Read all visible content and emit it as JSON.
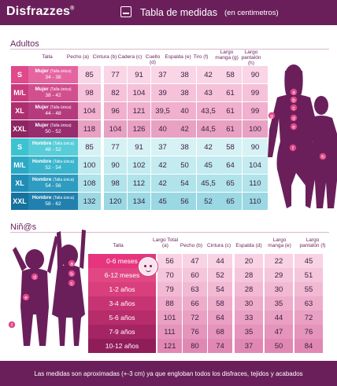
{
  "header": {
    "brand": "Disfrazzes",
    "title": "Tabla de medidas",
    "units": "(en centimetros)"
  },
  "adults": {
    "section_title": "Adultos",
    "headers": [
      "Talla",
      "Pecho (a)",
      "Cintura (b)",
      "Cadera (c)",
      "Cuello (d)",
      "Espalda (e)",
      "Tiro (f)",
      "Largo manga (g)",
      "Largo pantalón (h)"
    ],
    "rows": [
      {
        "size": "S",
        "group": "Mujer",
        "note": "(Talla única)",
        "range": "34 - 38",
        "values": [
          "85",
          "77",
          "91",
          "37",
          "38",
          "42",
          "58",
          "90"
        ]
      },
      {
        "size": "M/L",
        "group": "Mujer",
        "note": "(Talla única)",
        "range": "38 - 42",
        "values": [
          "98",
          "82",
          "104",
          "39",
          "38",
          "43",
          "61",
          "99"
        ]
      },
      {
        "size": "XL",
        "group": "Mujer",
        "note": "(Talla única)",
        "range": "44 - 48",
        "values": [
          "104",
          "96",
          "121",
          "39,5",
          "40",
          "43,5",
          "61",
          "99"
        ]
      },
      {
        "size": "XXL",
        "group": "Mujer",
        "note": "(Talla única)",
        "range": "50 - 52",
        "values": [
          "118",
          "104",
          "126",
          "40",
          "42",
          "44,5",
          "61",
          "100"
        ]
      },
      {
        "size": "S",
        "group": "Hombre",
        "note": "(Talla única)",
        "range": "48 - 52",
        "values": [
          "85",
          "77",
          "91",
          "37",
          "38",
          "42",
          "58",
          "90"
        ]
      },
      {
        "size": "M/L",
        "group": "Hombre",
        "note": "(Talla única)",
        "range": "52 - 54",
        "values": [
          "100",
          "90",
          "102",
          "42",
          "50",
          "45",
          "64",
          "104"
        ]
      },
      {
        "size": "XL",
        "group": "Hombre",
        "note": "(Talla única)",
        "range": "54 - 56",
        "values": [
          "108",
          "98",
          "112",
          "42",
          "54",
          "45,5",
          "65",
          "110"
        ]
      },
      {
        "size": "XXL",
        "group": "Hombre",
        "note": "(Talla única)",
        "range": "58 - 62",
        "values": [
          "132",
          "120",
          "134",
          "45",
          "56",
          "52",
          "65",
          "110"
        ]
      }
    ],
    "figure_labels": [
      "a",
      "b",
      "c",
      "d",
      "e",
      "f",
      "g",
      "h"
    ]
  },
  "kids": {
    "section_title": "Niñ@s",
    "headers": [
      "Talla",
      "Largo Total (a)",
      "Pecho (b)",
      "Cintura (c)",
      "Espalda (d)",
      "Largo manga (e)",
      "Largo pantalón (f)"
    ],
    "rows": [
      {
        "age": "0-6 meses",
        "values": [
          "56",
          "47",
          "44",
          "20",
          "22",
          "45"
        ]
      },
      {
        "age": "6-12 meses",
        "values": [
          "70",
          "60",
          "52",
          "28",
          "29",
          "51"
        ]
      },
      {
        "age": "1-2 años",
        "values": [
          "79",
          "63",
          "54",
          "28",
          "30",
          "55"
        ]
      },
      {
        "age": "3-4 años",
        "values": [
          "88",
          "66",
          "58",
          "30",
          "35",
          "63"
        ]
      },
      {
        "age": "5-6 años",
        "values": [
          "101",
          "72",
          "64",
          "33",
          "44",
          "72"
        ]
      },
      {
        "age": "7-9 años",
        "values": [
          "111",
          "76",
          "68",
          "35",
          "47",
          "76"
        ]
      },
      {
        "age": "10-12 años",
        "values": [
          "121",
          "80",
          "74",
          "37",
          "50",
          "84"
        ]
      }
    ],
    "figure_labels": [
      "a",
      "b",
      "c",
      "d",
      "e",
      "f"
    ]
  },
  "footer": {
    "note": "Las medidas son aproximadas (+-3 cm) ya que engloban todos los disfraces, tejidos y acabados"
  },
  "colors": {
    "brand": "#6a1f5b",
    "women_accent": "#d24f8f",
    "men_accent": "#2aa8c5",
    "kids_accent": "#c93a7d"
  }
}
